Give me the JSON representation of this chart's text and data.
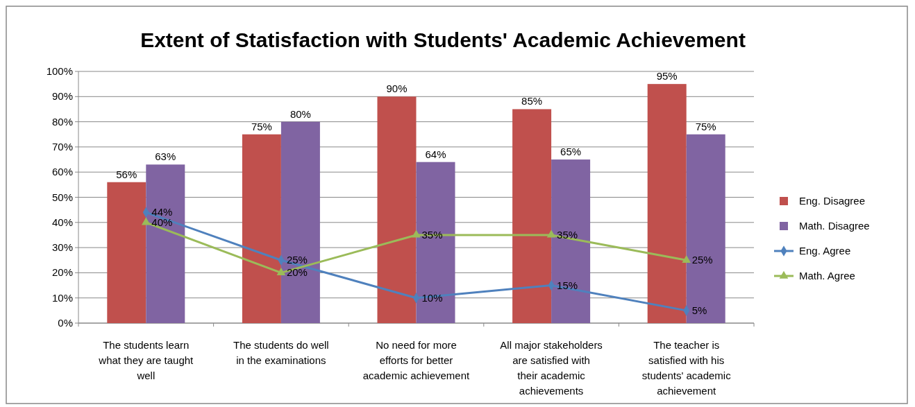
{
  "chart_data": {
    "type": "bar",
    "title": "Extent of Statisfaction with Students' Academic Achievement",
    "categories": [
      "The students learn what they are taught well",
      "The students do well in the examinations",
      "No need for more efforts for better academic achievement",
      "All major stakeholders are satisfied with their academic achievements",
      "The teacher is satisfied with his students' academic achievement"
    ],
    "series": [
      {
        "name": "Eng. Disagree",
        "color": "#c0504d",
        "values": [
          56,
          75,
          90,
          85,
          95
        ],
        "value_labels": [
          "56%",
          "75%",
          "90%",
          "85%",
          "95%"
        ]
      },
      {
        "name": "Math. Disagree",
        "color": "#8064a2",
        "values": [
          63,
          80,
          64,
          65,
          75
        ],
        "value_labels": [
          "63%",
          "80%",
          "64%",
          "65%",
          "75%"
        ]
      },
      {
        "name": "Eng. Agree",
        "type": "line",
        "color": "#4f81bd",
        "marker": "diamond",
        "values": [
          44,
          25,
          10,
          15,
          5
        ],
        "value_labels": [
          "44%",
          "25%",
          "10%",
          "15%",
          "5%"
        ]
      },
      {
        "name": "Math. Agree",
        "type": "line",
        "color": "#9bbb59",
        "marker": "triangle",
        "values": [
          40,
          20,
          35,
          35,
          25
        ],
        "value_labels": [
          "40%",
          "20%",
          "35%",
          "35%",
          "25%"
        ]
      }
    ],
    "ylim": [
      0,
      100
    ],
    "yticks": [
      {
        "value": 0,
        "label": "0%"
      },
      {
        "value": 10,
        "label": "10%"
      },
      {
        "value": 20,
        "label": "20%"
      },
      {
        "value": 30,
        "label": "30%"
      },
      {
        "value": 40,
        "label": "40%"
      },
      {
        "value": 50,
        "label": "50%"
      },
      {
        "value": 60,
        "label": "60%"
      },
      {
        "value": 70,
        "label": "70%"
      },
      {
        "value": 80,
        "label": "80%"
      },
      {
        "value": 90,
        "label": "90%"
      },
      {
        "value": 100,
        "label": "100%"
      }
    ],
    "grid": "y",
    "legend": "right"
  }
}
